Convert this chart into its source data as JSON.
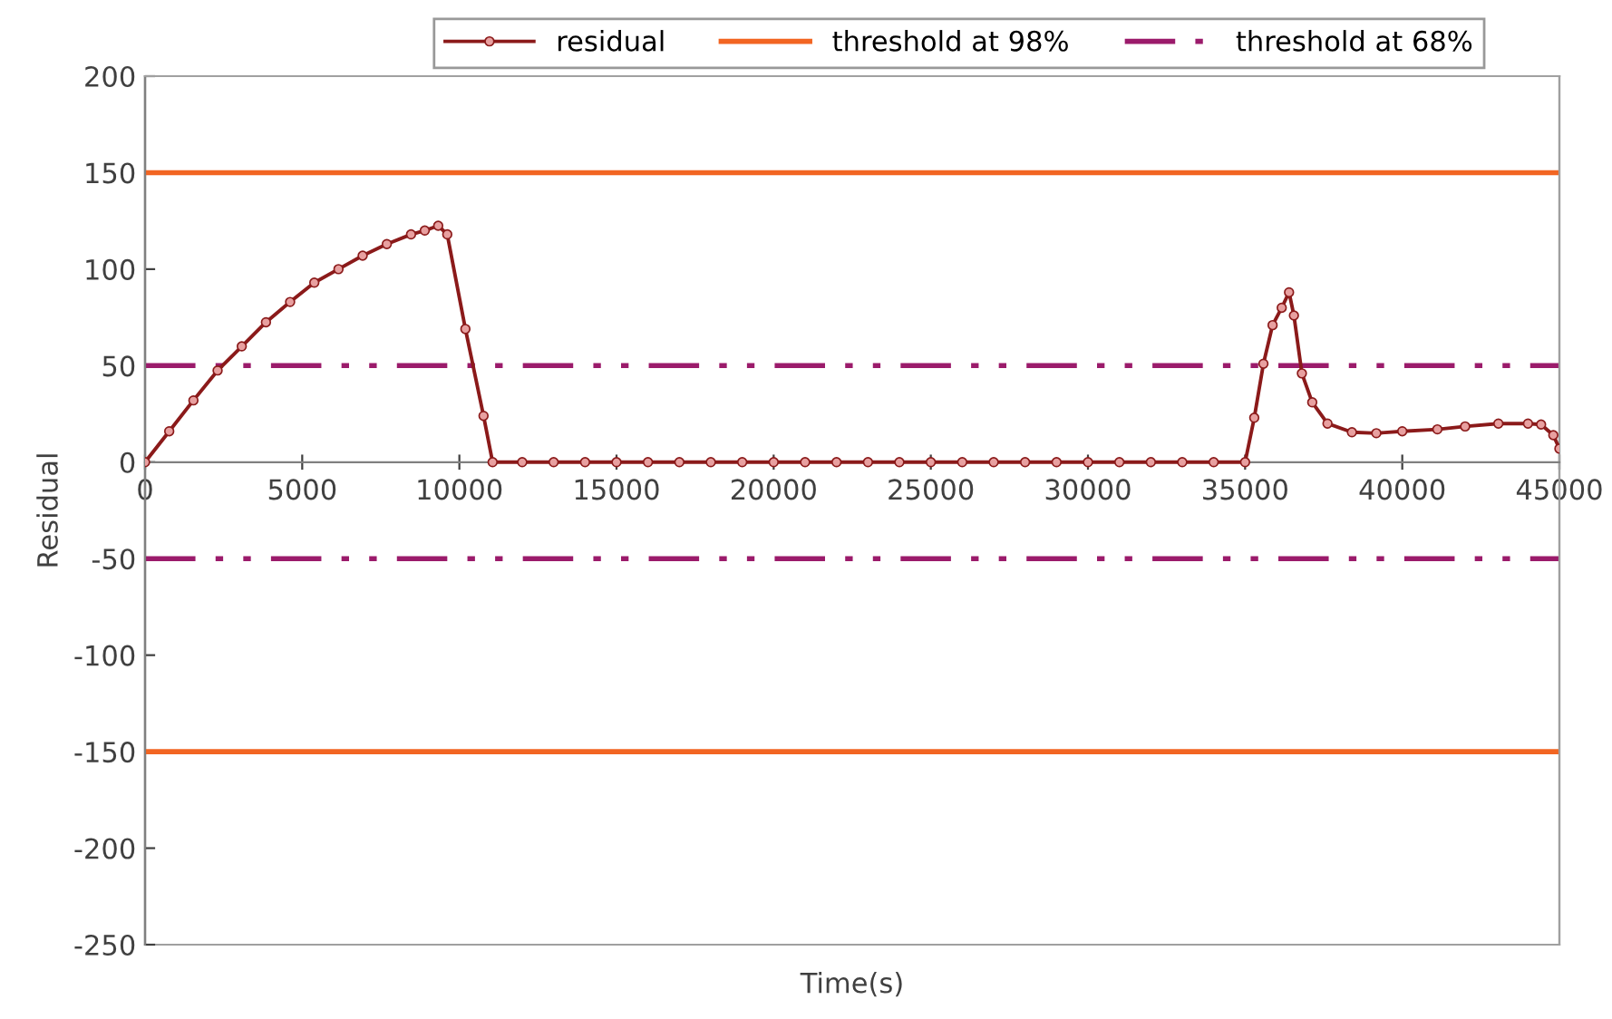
{
  "chart_data": {
    "type": "line",
    "xlabel": "Time(s)",
    "ylabel": "Residual",
    "xlim": [
      0,
      45000
    ],
    "xticks": [
      0,
      5000,
      10000,
      15000,
      20000,
      25000,
      30000,
      35000,
      40000,
      45000
    ],
    "ylim": [
      -250,
      200
    ],
    "yticks": [
      -250,
      -200,
      -150,
      -100,
      -50,
      0,
      50,
      100,
      150,
      200
    ],
    "grid": false,
    "legend": "top",
    "series": [
      {
        "name": "residual",
        "color": "#8b1a1a",
        "marker": "circle",
        "line_style": "solid",
        "x": [
          0,
          769,
          1538,
          2308,
          3077,
          3846,
          4615,
          5385,
          6154,
          6923,
          7692,
          8462,
          8900,
          9327,
          9615,
          10192,
          10769,
          11058,
          12000,
          13000,
          14000,
          15000,
          16000,
          17000,
          18000,
          19000,
          20000,
          21000,
          22000,
          23000,
          24000,
          25000,
          26000,
          27000,
          28000,
          29000,
          30000,
          31000,
          32000,
          33000,
          34000,
          35000,
          35291,
          35583,
          35874,
          36165,
          36398,
          36553,
          36806,
          37136,
          37621,
          38398,
          39175,
          40000,
          41117,
          42000,
          43058,
          44000,
          44417,
          44806,
          45000
        ],
        "values": [
          0,
          16,
          32,
          47.5,
          60,
          72.5,
          83,
          93,
          100,
          107,
          113,
          118,
          120,
          122.5,
          118,
          69,
          24,
          0,
          0,
          0,
          0,
          0,
          0,
          0,
          0,
          0,
          0,
          0,
          0,
          0,
          0,
          0,
          0,
          0,
          0,
          0,
          0,
          0,
          0,
          0,
          0,
          0,
          23,
          51,
          71,
          80,
          88,
          76,
          46,
          31,
          20,
          15.5,
          15,
          16,
          17,
          18.5,
          20,
          20,
          19.5,
          14,
          7
        ]
      },
      {
        "name": "threshold at 98%",
        "color": "#f26522",
        "marker": "none",
        "line_style": "solid",
        "x": [
          0,
          45000
        ],
        "values": [
          150,
          150
        ]
      },
      {
        "color": "#f26522",
        "marker": "none",
        "line_style": "solid",
        "x": [
          0,
          45000
        ],
        "values": [
          -150,
          -150
        ]
      },
      {
        "name": "threshold at 68%",
        "color": "#9b1b6b",
        "marker": "none",
        "line_style": "dashdot",
        "x": [
          0,
          45000
        ],
        "values": [
          50,
          50
        ]
      },
      {
        "color": "#9b1b6b",
        "marker": "none",
        "line_style": "dashdot",
        "x": [
          0,
          45000
        ],
        "values": [
          -50,
          -50
        ]
      }
    ]
  }
}
